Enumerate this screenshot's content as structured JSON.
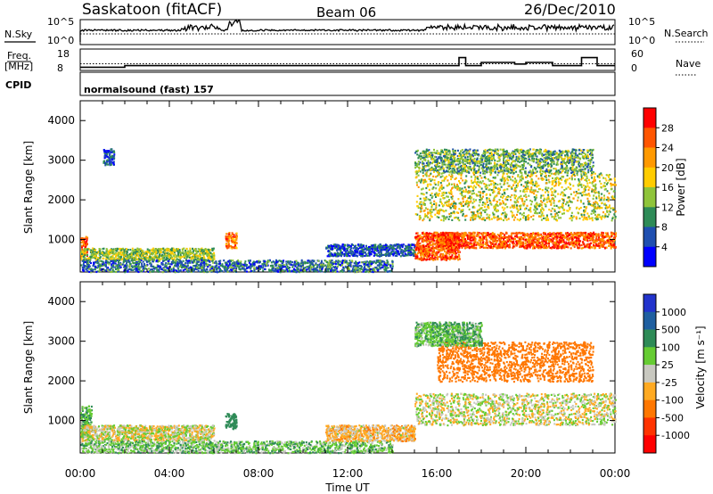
{
  "header": {
    "site": "Saskatoon (fitACF)",
    "beam": "Beam 06",
    "date": "26/Dec/2010"
  },
  "strip_panels": {
    "nsky_label": "N.Sky",
    "nsky_ticks": [
      "10^5",
      "10^0"
    ],
    "nsearch_label": "N.Search",
    "nsearch_ticks": [
      "10^5",
      "10^0"
    ],
    "freq_label_line1": "Freq.",
    "freq_label_line2": "[MHz]",
    "freq_ticks": [
      "18",
      "8"
    ],
    "nave_label": "Nave",
    "nave_ticks": [
      "60",
      "0"
    ],
    "cpid_label": "CPID",
    "cpid_text": "normalsound (fast) 157"
  },
  "power_panel": {
    "ylabel": "Slant Range [km]",
    "colorbar_label": "Power [dB]",
    "colorbar_ticks": [
      "28",
      "24",
      "20",
      "16",
      "12",
      "8",
      "4"
    ],
    "colorbar_colors": [
      "#ff0000",
      "#ff5500",
      "#ff9900",
      "#ffcc00",
      "#8fc43a",
      "#2e8b57",
      "#1f4fb0",
      "#0000ff"
    ]
  },
  "velocity_panel": {
    "ylabel": "Slant Range [km]",
    "colorbar_label": "Velocity [m s⁻¹]",
    "colorbar_ticks": [
      "1000",
      "500",
      "100",
      "25",
      "-25",
      "-100",
      "-500",
      "-1000"
    ],
    "colorbar_colors": [
      "#2233cc",
      "#1f5fa0",
      "#2e8b57",
      "#66cc33",
      "#c8c8c0",
      "#ffaa22",
      "#ff7700",
      "#ff3300",
      "#ff0000"
    ]
  },
  "x_axis": {
    "label": "Time UT",
    "ticks": [
      "00:00",
      "04:00",
      "08:00",
      "12:00",
      "16:00",
      "20:00",
      "00:00"
    ]
  },
  "chart_data": {
    "type": "heatmap",
    "x_range_hours": [
      0,
      24
    ],
    "y_range_km": [
      180,
      4500
    ],
    "y_ticks": [
      1000,
      2000,
      3000,
      4000
    ],
    "frequency_mhz_segments": [
      {
        "start": 0,
        "end": 2,
        "value": 10
      },
      {
        "start": 2,
        "end": 17,
        "value": 11
      },
      {
        "start": 17,
        "end": 17.3,
        "value": 16
      },
      {
        "start": 17.3,
        "end": 18,
        "value": 11
      },
      {
        "start": 18,
        "end": 19.5,
        "value": 13
      },
      {
        "start": 19.5,
        "end": 20,
        "value": 12
      },
      {
        "start": 20,
        "end": 21.2,
        "value": 13
      },
      {
        "start": 21.2,
        "end": 22.5,
        "value": 11
      },
      {
        "start": 22.5,
        "end": 23.2,
        "value": 16
      },
      {
        "start": 23.2,
        "end": 24,
        "value": 11
      }
    ],
    "nave_reference": 25,
    "power_scatter_regions": [
      {
        "start": 0,
        "end": 0.3,
        "min_km": 600,
        "max_km": 1100,
        "db": 26
      },
      {
        "start": 0,
        "end": 6,
        "min_km": 500,
        "max_km": 800,
        "db": 14
      },
      {
        "start": 0,
        "end": 14,
        "min_km": 200,
        "max_km": 500,
        "db": 8
      },
      {
        "start": 1,
        "end": 1.5,
        "min_km": 2900,
        "max_km": 3300,
        "db": 6
      },
      {
        "start": 6.5,
        "end": 7,
        "min_km": 800,
        "max_km": 1200,
        "db": 24
      },
      {
        "start": 11,
        "end": 15,
        "min_km": 600,
        "max_km": 900,
        "db": 6
      },
      {
        "start": 15,
        "end": 17,
        "min_km": 500,
        "max_km": 1200,
        "db": 26
      },
      {
        "start": 15,
        "end": 24,
        "min_km": 1500,
        "max_km": 2700,
        "db": 16
      },
      {
        "start": 16,
        "end": 24,
        "min_km": 800,
        "max_km": 1200,
        "db": 26
      },
      {
        "start": 15,
        "end": 23,
        "min_km": 2700,
        "max_km": 3300,
        "db": 12
      }
    ],
    "velocity_scatter_regions": [
      {
        "start": 0,
        "end": 0.5,
        "min_km": 600,
        "max_km": 1400,
        "ms": 80
      },
      {
        "start": 0,
        "end": 6,
        "min_km": 500,
        "max_km": 900,
        "ms": 0
      },
      {
        "start": 0,
        "end": 14,
        "min_km": 200,
        "max_km": 500,
        "ms": 60
      },
      {
        "start": 6.5,
        "end": 7,
        "min_km": 800,
        "max_km": 1200,
        "ms": 200
      },
      {
        "start": 11,
        "end": 15,
        "min_km": 500,
        "max_km": 900,
        "ms": -50
      },
      {
        "start": 15,
        "end": 24,
        "min_km": 900,
        "max_km": 1700,
        "ms": 0
      },
      {
        "start": 16,
        "end": 23,
        "min_km": 2000,
        "max_km": 3000,
        "ms": -200
      },
      {
        "start": 15,
        "end": 18,
        "min_km": 2900,
        "max_km": 3500,
        "ms": 80
      }
    ]
  }
}
